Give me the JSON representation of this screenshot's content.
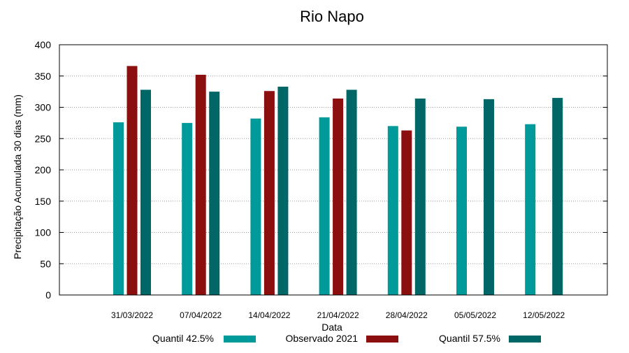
{
  "chart_data": {
    "type": "bar",
    "title": "Rio Napo",
    "xlabel": "Data",
    "ylabel": "Precipitação Acumulada 30 dias (mm)",
    "ylim": [
      0,
      400
    ],
    "yticks": [
      0,
      50,
      100,
      150,
      200,
      250,
      300,
      350,
      400
    ],
    "grid": true,
    "legend_position": "bottom",
    "categories": [
      "31/03/2022",
      "07/04/2022",
      "14/04/2022",
      "21/04/2022",
      "28/04/2022",
      "05/05/2022",
      "12/05/2022"
    ],
    "series": [
      {
        "name": "Quantil 42.5%",
        "color": "#009a9a",
        "values": [
          276,
          275,
          282,
          284,
          270,
          269,
          273
        ]
      },
      {
        "name": "Observado 2021",
        "color": "#8b0f0f",
        "values": [
          366,
          352,
          326,
          314,
          263,
          null,
          null
        ]
      },
      {
        "name": "Quantil 57.5%",
        "color": "#006666",
        "values": [
          328,
          325,
          333,
          328,
          314,
          313,
          315
        ]
      }
    ]
  }
}
